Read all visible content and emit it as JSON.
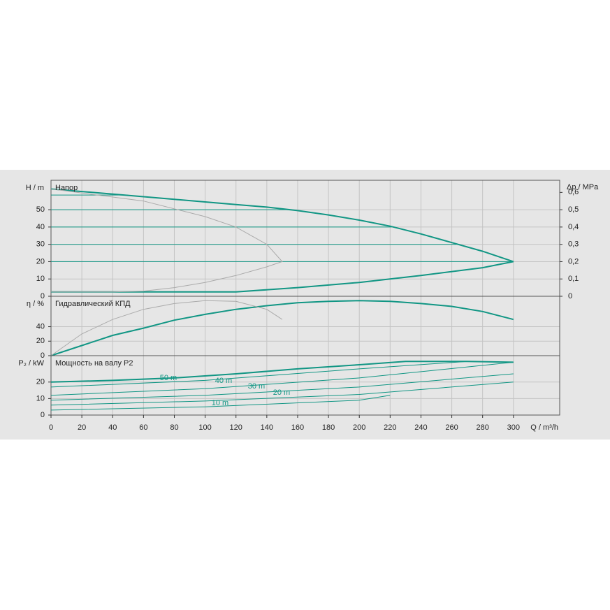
{
  "chart_data": [
    {
      "type": "line",
      "title": "Напор",
      "ylabel": "H / m",
      "y2label": "Δp / MPa",
      "xlim": [
        0,
        330
      ],
      "ylim": [
        0,
        67
      ],
      "yticks": [
        0,
        10,
        20,
        30,
        40,
        50
      ],
      "y2lim": [
        0,
        0.67
      ],
      "y2ticks": [
        0,
        {
          "value": 0.1,
          "label": "0,1"
        },
        {
          "value": 0.2,
          "label": "0,2"
        },
        {
          "value": 0.3,
          "label": "0,3"
        },
        {
          "value": 0.4,
          "label": "0,4"
        },
        {
          "value": 0.5,
          "label": "0,5"
        },
        {
          "value": 0.6,
          "label": "0,6"
        }
      ],
      "grid": true,
      "series": [
        {
          "color": "#119684",
          "linewidth": 2,
          "x": [
            0,
            20,
            40,
            60,
            80,
            100,
            120,
            140,
            160,
            180,
            200,
            220,
            240,
            260,
            280,
            300
          ],
          "values": [
            62,
            60.5,
            59,
            57.5,
            56,
            54.5,
            53,
            51.5,
            49.5,
            47,
            44,
            40.5,
            36,
            31,
            26,
            20
          ]
        },
        {
          "color": "#119684",
          "linewidth": 2,
          "x": [
            0,
            120,
            160,
            200,
            240,
            280,
            300
          ],
          "values": [
            2.5,
            2.5,
            5,
            8,
            12,
            16.5,
            20
          ]
        },
        {
          "color": "#119684",
          "linewidth": 1,
          "x": [
            0,
            50
          ],
          "values": [
            58.5,
            58.5
          ]
        },
        {
          "color": "#119684",
          "linewidth": 1,
          "x": [
            0,
            155
          ],
          "values": [
            50,
            50
          ]
        },
        {
          "color": "#119684",
          "linewidth": 1,
          "x": [
            0,
            221
          ],
          "values": [
            40,
            40
          ]
        },
        {
          "color": "#119684",
          "linewidth": 1,
          "x": [
            0,
            263
          ],
          "values": [
            30,
            30
          ]
        },
        {
          "color": "#119684",
          "linewidth": 1,
          "x": [
            0,
            300
          ],
          "values": [
            20,
            20
          ]
        },
        {
          "color": "#aaaaaa",
          "linewidth": 1,
          "x": [
            0,
            60,
            100,
            120,
            140,
            150,
            140,
            120,
            100,
            80,
            60,
            40,
            0
          ],
          "values": [
            62,
            55,
            46,
            40,
            30,
            20,
            17,
            12,
            8,
            5,
            3,
            2.5,
            2.5
          ]
        }
      ]
    },
    {
      "type": "line",
      "title": "Гидравлический КПД",
      "ylabel": "η / %",
      "xlim": [
        0,
        330
      ],
      "ylim": [
        0,
        82
      ],
      "yticks": [
        0,
        20,
        40
      ],
      "grid": true,
      "series": [
        {
          "color": "#119684",
          "linewidth": 2,
          "x": [
            0,
            20,
            40,
            60,
            80,
            100,
            120,
            140,
            160,
            180,
            200,
            220,
            240,
            260,
            280,
            300
          ],
          "values": [
            0,
            14,
            28,
            38,
            49,
            57,
            64,
            69,
            73,
            75,
            76,
            75,
            72,
            68,
            61,
            50
          ]
        },
        {
          "color": "#aaaaaa",
          "linewidth": 1,
          "x": [
            0,
            20,
            40,
            60,
            80,
            100,
            120,
            140,
            150
          ],
          "values": [
            0,
            30,
            50,
            64,
            72,
            76,
            75,
            64,
            50
          ]
        }
      ]
    },
    {
      "type": "line",
      "title": "Мощность на валу P2",
      "ylabel": "P₂ / kW",
      "xlabel": "Q / m³/h",
      "xlim": [
        0,
        330
      ],
      "xticks": [
        0,
        20,
        40,
        60,
        80,
        100,
        120,
        140,
        160,
        180,
        200,
        220,
        240,
        260,
        280,
        300
      ],
      "ylim": [
        0,
        36
      ],
      "yticks": [
        0,
        10,
        20
      ],
      "grid": true,
      "annotations": [
        "50 m",
        "40 m",
        "30 m",
        "20 m",
        "10 m"
      ],
      "series": [
        {
          "color": "#119684",
          "linewidth": 2,
          "x": [
            0,
            40,
            80,
            120,
            160,
            200,
            230,
            270,
            300
          ],
          "values": [
            20,
            21,
            22.5,
            25,
            28,
            30.5,
            32.5,
            32.5,
            32
          ]
        },
        {
          "color": "#119684",
          "linewidth": 1,
          "x": [
            0,
            100,
            200,
            270
          ],
          "values": [
            17,
            21,
            28,
            32.5
          ]
        },
        {
          "color": "#119684",
          "linewidth": 1,
          "x": [
            0,
            100,
            200,
            300
          ],
          "values": [
            12,
            16,
            22.5,
            32
          ]
        },
        {
          "color": "#119684",
          "linewidth": 1,
          "x": [
            0,
            100,
            200,
            300
          ],
          "values": [
            9,
            12,
            17,
            25
          ]
        },
        {
          "color": "#119684",
          "linewidth": 1,
          "x": [
            0,
            100,
            200,
            300
          ],
          "values": [
            6,
            8.5,
            12.5,
            20
          ]
        },
        {
          "color": "#119684",
          "linewidth": 1,
          "x": [
            0,
            100,
            200,
            220
          ],
          "values": [
            3,
            5,
            9,
            12
          ]
        }
      ]
    }
  ]
}
